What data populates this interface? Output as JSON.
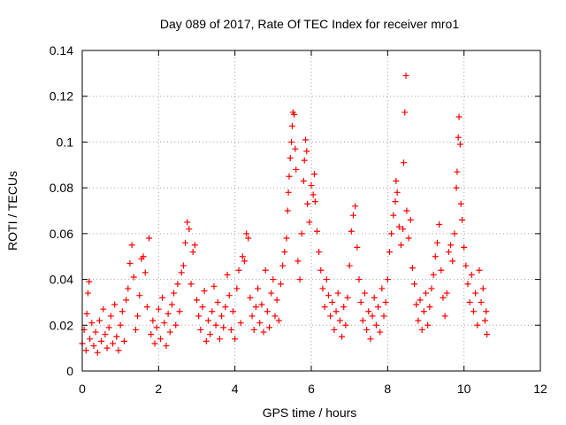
{
  "chart_data": {
    "type": "scatter",
    "title": "Day 089 of 2017, Rate Of TEC Index for receiver mro1",
    "xlabel": "GPS time / hours",
    "ylabel": "ROTI / TECUs",
    "xlim": [
      0,
      12
    ],
    "ylim": [
      0,
      0.14
    ],
    "xticks": [
      0,
      2,
      4,
      6,
      8,
      10,
      12
    ],
    "xtick_labels": [
      "0",
      "2",
      "4",
      "6",
      "8",
      "10",
      "12"
    ],
    "yticks": [
      0,
      0.02,
      0.04,
      0.06,
      0.08,
      0.1,
      0.12,
      0.14
    ],
    "ytick_labels": [
      "0",
      "0.02",
      "0.04",
      "0.06",
      "0.08",
      "0.1",
      "0.12",
      "0.14"
    ],
    "grid": true,
    "marker": "+",
    "series": [
      {
        "name": "ROTI",
        "color": "#ff0000",
        "points": [
          [
            0.0,
            0.012
          ],
          [
            0.05,
            0.018
          ],
          [
            0.1,
            0.009
          ],
          [
            0.12,
            0.025
          ],
          [
            0.15,
            0.034
          ],
          [
            0.18,
            0.039
          ],
          [
            0.2,
            0.014
          ],
          [
            0.25,
            0.021
          ],
          [
            0.3,
            0.011
          ],
          [
            0.35,
            0.017
          ],
          [
            0.4,
            0.008
          ],
          [
            0.45,
            0.022
          ],
          [
            0.5,
            0.013
          ],
          [
            0.55,
            0.027
          ],
          [
            0.6,
            0.016
          ],
          [
            0.65,
            0.01
          ],
          [
            0.7,
            0.019
          ],
          [
            0.75,
            0.024
          ],
          [
            0.8,
            0.012
          ],
          [
            0.85,
            0.029
          ],
          [
            0.9,
            0.015
          ],
          [
            0.95,
            0.009
          ],
          [
            1.0,
            0.02
          ],
          [
            1.05,
            0.026
          ],
          [
            1.1,
            0.013
          ],
          [
            1.15,
            0.031
          ],
          [
            1.2,
            0.036
          ],
          [
            1.25,
            0.047
          ],
          [
            1.3,
            0.055
          ],
          [
            1.35,
            0.041
          ],
          [
            1.4,
            0.018
          ],
          [
            1.45,
            0.024
          ],
          [
            1.5,
            0.033
          ],
          [
            1.55,
            0.049
          ],
          [
            1.6,
            0.05
          ],
          [
            1.65,
            0.043
          ],
          [
            1.7,
            0.028
          ],
          [
            1.75,
            0.058
          ],
          [
            1.8,
            0.016
          ],
          [
            1.85,
            0.022
          ],
          [
            1.9,
            0.012
          ],
          [
            1.95,
            0.019
          ],
          [
            2.0,
            0.027
          ],
          [
            2.05,
            0.014
          ],
          [
            2.1,
            0.032
          ],
          [
            2.15,
            0.021
          ],
          [
            2.2,
            0.011
          ],
          [
            2.25,
            0.025
          ],
          [
            2.3,
            0.017
          ],
          [
            2.35,
            0.029
          ],
          [
            2.4,
            0.034
          ],
          [
            2.45,
            0.02
          ],
          [
            2.5,
            0.038
          ],
          [
            2.55,
            0.026
          ],
          [
            2.6,
            0.043
          ],
          [
            2.65,
            0.046
          ],
          [
            2.7,
            0.056
          ],
          [
            2.75,
            0.065
          ],
          [
            2.8,
            0.062
          ],
          [
            2.85,
            0.038
          ],
          [
            2.9,
            0.052
          ],
          [
            2.95,
            0.055
          ],
          [
            3.0,
            0.031
          ],
          [
            3.05,
            0.024
          ],
          [
            3.1,
            0.018
          ],
          [
            3.15,
            0.028
          ],
          [
            3.2,
            0.035
          ],
          [
            3.25,
            0.013
          ],
          [
            3.3,
            0.022
          ],
          [
            3.35,
            0.016
          ],
          [
            3.4,
            0.026
          ],
          [
            3.45,
            0.037
          ],
          [
            3.5,
            0.02
          ],
          [
            3.55,
            0.03
          ],
          [
            3.6,
            0.014
          ],
          [
            3.65,
            0.024
          ],
          [
            3.7,
            0.019
          ],
          [
            3.75,
            0.028
          ],
          [
            3.8,
            0.042
          ],
          [
            3.85,
            0.033
          ],
          [
            3.9,
            0.018
          ],
          [
            3.95,
            0.026
          ],
          [
            4.0,
            0.014
          ],
          [
            4.05,
            0.036
          ],
          [
            4.1,
            0.044
          ],
          [
            4.15,
            0.021
          ],
          [
            4.2,
            0.05
          ],
          [
            4.25,
            0.048
          ],
          [
            4.3,
            0.06
          ],
          [
            4.35,
            0.058
          ],
          [
            4.4,
            0.032
          ],
          [
            4.45,
            0.024
          ],
          [
            4.5,
            0.018
          ],
          [
            4.55,
            0.028
          ],
          [
            4.6,
            0.036
          ],
          [
            4.65,
            0.021
          ],
          [
            4.7,
            0.029
          ],
          [
            4.75,
            0.017
          ],
          [
            4.8,
            0.044
          ],
          [
            4.85,
            0.026
          ],
          [
            4.9,
            0.019
          ],
          [
            4.95,
            0.034
          ],
          [
            5.0,
            0.04
          ],
          [
            5.05,
            0.024
          ],
          [
            5.1,
            0.031
          ],
          [
            5.15,
            0.022
          ],
          [
            5.2,
            0.038
          ],
          [
            5.25,
            0.046
          ],
          [
            5.3,
            0.052
          ],
          [
            5.35,
            0.058
          ],
          [
            5.38,
            0.07
          ],
          [
            5.4,
            0.078
          ],
          [
            5.42,
            0.085
          ],
          [
            5.45,
            0.093
          ],
          [
            5.48,
            0.1
          ],
          [
            5.5,
            0.107
          ],
          [
            5.52,
            0.113
          ],
          [
            5.55,
            0.112
          ],
          [
            5.58,
            0.097
          ],
          [
            5.6,
            0.088
          ],
          [
            5.65,
            0.048
          ],
          [
            5.7,
            0.04
          ],
          [
            5.75,
            0.06
          ],
          [
            5.8,
            0.083
          ],
          [
            5.82,
            0.092
          ],
          [
            5.85,
            0.101
          ],
          [
            5.88,
            0.096
          ],
          [
            5.9,
            0.073
          ],
          [
            5.95,
            0.065
          ],
          [
            6.0,
            0.081
          ],
          [
            6.05,
            0.077
          ],
          [
            6.08,
            0.086
          ],
          [
            6.1,
            0.074
          ],
          [
            6.15,
            0.061
          ],
          [
            6.2,
            0.052
          ],
          [
            6.25,
            0.044
          ],
          [
            6.3,
            0.036
          ],
          [
            6.35,
            0.028
          ],
          [
            6.4,
            0.04
          ],
          [
            6.45,
            0.033
          ],
          [
            6.5,
            0.024
          ],
          [
            6.55,
            0.03
          ],
          [
            6.6,
            0.018
          ],
          [
            6.65,
            0.026
          ],
          [
            6.7,
            0.034
          ],
          [
            6.75,
            0.022
          ],
          [
            6.8,
            0.015
          ],
          [
            6.85,
            0.028
          ],
          [
            6.9,
            0.02
          ],
          [
            6.95,
            0.032
          ],
          [
            7.0,
            0.046
          ],
          [
            7.05,
            0.061
          ],
          [
            7.1,
            0.068
          ],
          [
            7.15,
            0.072
          ],
          [
            7.2,
            0.054
          ],
          [
            7.25,
            0.04
          ],
          [
            7.3,
            0.03
          ],
          [
            7.35,
            0.022
          ],
          [
            7.4,
            0.034
          ],
          [
            7.45,
            0.018
          ],
          [
            7.5,
            0.026
          ],
          [
            7.55,
            0.014
          ],
          [
            7.6,
            0.024
          ],
          [
            7.65,
            0.032
          ],
          [
            7.7,
            0.02
          ],
          [
            7.75,
            0.028
          ],
          [
            7.8,
            0.017
          ],
          [
            7.85,
            0.036
          ],
          [
            7.9,
            0.024
          ],
          [
            7.95,
            0.03
          ],
          [
            8.0,
            0.04
          ],
          [
            8.05,
            0.052
          ],
          [
            8.1,
            0.06
          ],
          [
            8.15,
            0.068
          ],
          [
            8.2,
            0.074
          ],
          [
            8.22,
            0.083
          ],
          [
            8.25,
            0.078
          ],
          [
            8.3,
            0.063
          ],
          [
            8.35,
            0.055
          ],
          [
            8.4,
            0.062
          ],
          [
            8.42,
            0.091
          ],
          [
            8.45,
            0.113
          ],
          [
            8.48,
            0.129
          ],
          [
            8.5,
            0.07
          ],
          [
            8.55,
            0.058
          ],
          [
            8.6,
            0.066
          ],
          [
            8.65,
            0.045
          ],
          [
            8.7,
            0.038
          ],
          [
            8.75,
            0.029
          ],
          [
            8.8,
            0.022
          ],
          [
            8.85,
            0.031
          ],
          [
            8.9,
            0.018
          ],
          [
            8.95,
            0.026
          ],
          [
            9.0,
            0.034
          ],
          [
            9.05,
            0.02
          ],
          [
            9.1,
            0.028
          ],
          [
            9.15,
            0.036
          ],
          [
            9.2,
            0.042
          ],
          [
            9.25,
            0.05
          ],
          [
            9.3,
            0.056
          ],
          [
            9.35,
            0.064
          ],
          [
            9.4,
            0.044
          ],
          [
            9.45,
            0.032
          ],
          [
            9.5,
            0.024
          ],
          [
            9.55,
            0.034
          ],
          [
            9.6,
            0.052
          ],
          [
            9.65,
            0.055
          ],
          [
            9.7,
            0.048
          ],
          [
            9.75,
            0.06
          ],
          [
            9.8,
            0.08
          ],
          [
            9.82,
            0.087
          ],
          [
            9.85,
            0.102
          ],
          [
            9.87,
            0.111
          ],
          [
            9.9,
            0.099
          ],
          [
            9.92,
            0.073
          ],
          [
            9.95,
            0.066
          ],
          [
            10.0,
            0.054
          ],
          [
            10.05,
            0.046
          ],
          [
            10.1,
            0.038
          ],
          [
            10.15,
            0.03
          ],
          [
            10.2,
            0.042
          ],
          [
            10.25,
            0.026
          ],
          [
            10.3,
            0.034
          ],
          [
            10.35,
            0.02
          ],
          [
            10.4,
            0.044
          ],
          [
            10.45,
            0.03
          ],
          [
            10.5,
            0.036
          ],
          [
            10.55,
            0.022
          ],
          [
            10.58,
            0.026
          ],
          [
            10.6,
            0.016
          ]
        ]
      }
    ]
  }
}
